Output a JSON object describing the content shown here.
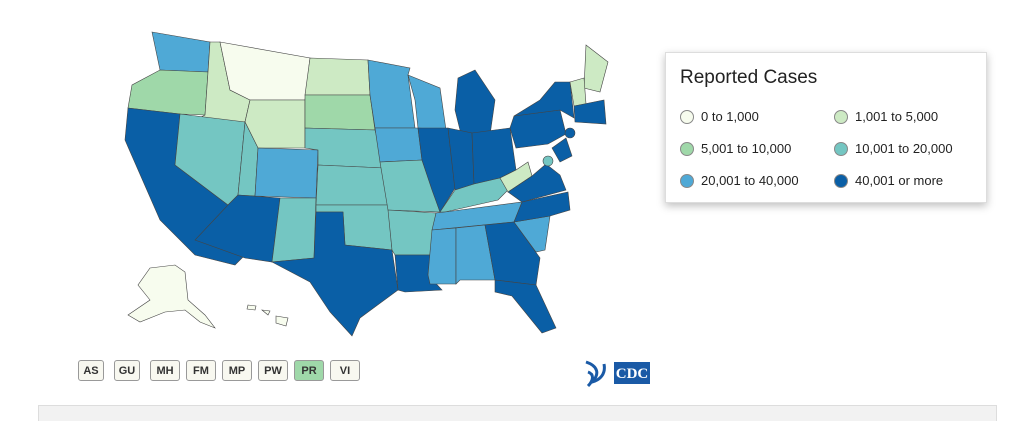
{
  "legend": {
    "title": "Reported Cases",
    "items": [
      {
        "label": "0 to 1,000",
        "color": "#f7fcee"
      },
      {
        "label": "1,001 to 5,000",
        "color": "#cdeac4"
      },
      {
        "label": "5,001 to 10,000",
        "color": "#9fd8a9"
      },
      {
        "label": "10,001 to 20,000",
        "color": "#74c6c2"
      },
      {
        "label": "20,001 to 40,000",
        "color": "#4fa9d6"
      },
      {
        "label": "40,001 or more",
        "color": "#0a5fa6"
      }
    ]
  },
  "territories": [
    {
      "label": "AS"
    },
    {
      "label": "GU"
    },
    {
      "label": "MH"
    },
    {
      "label": "FM"
    },
    {
      "label": "MP"
    },
    {
      "label": "PW"
    },
    {
      "label": "PR",
      "active": true
    },
    {
      "label": "VI"
    }
  ],
  "logo": {
    "text": "CDC"
  }
}
